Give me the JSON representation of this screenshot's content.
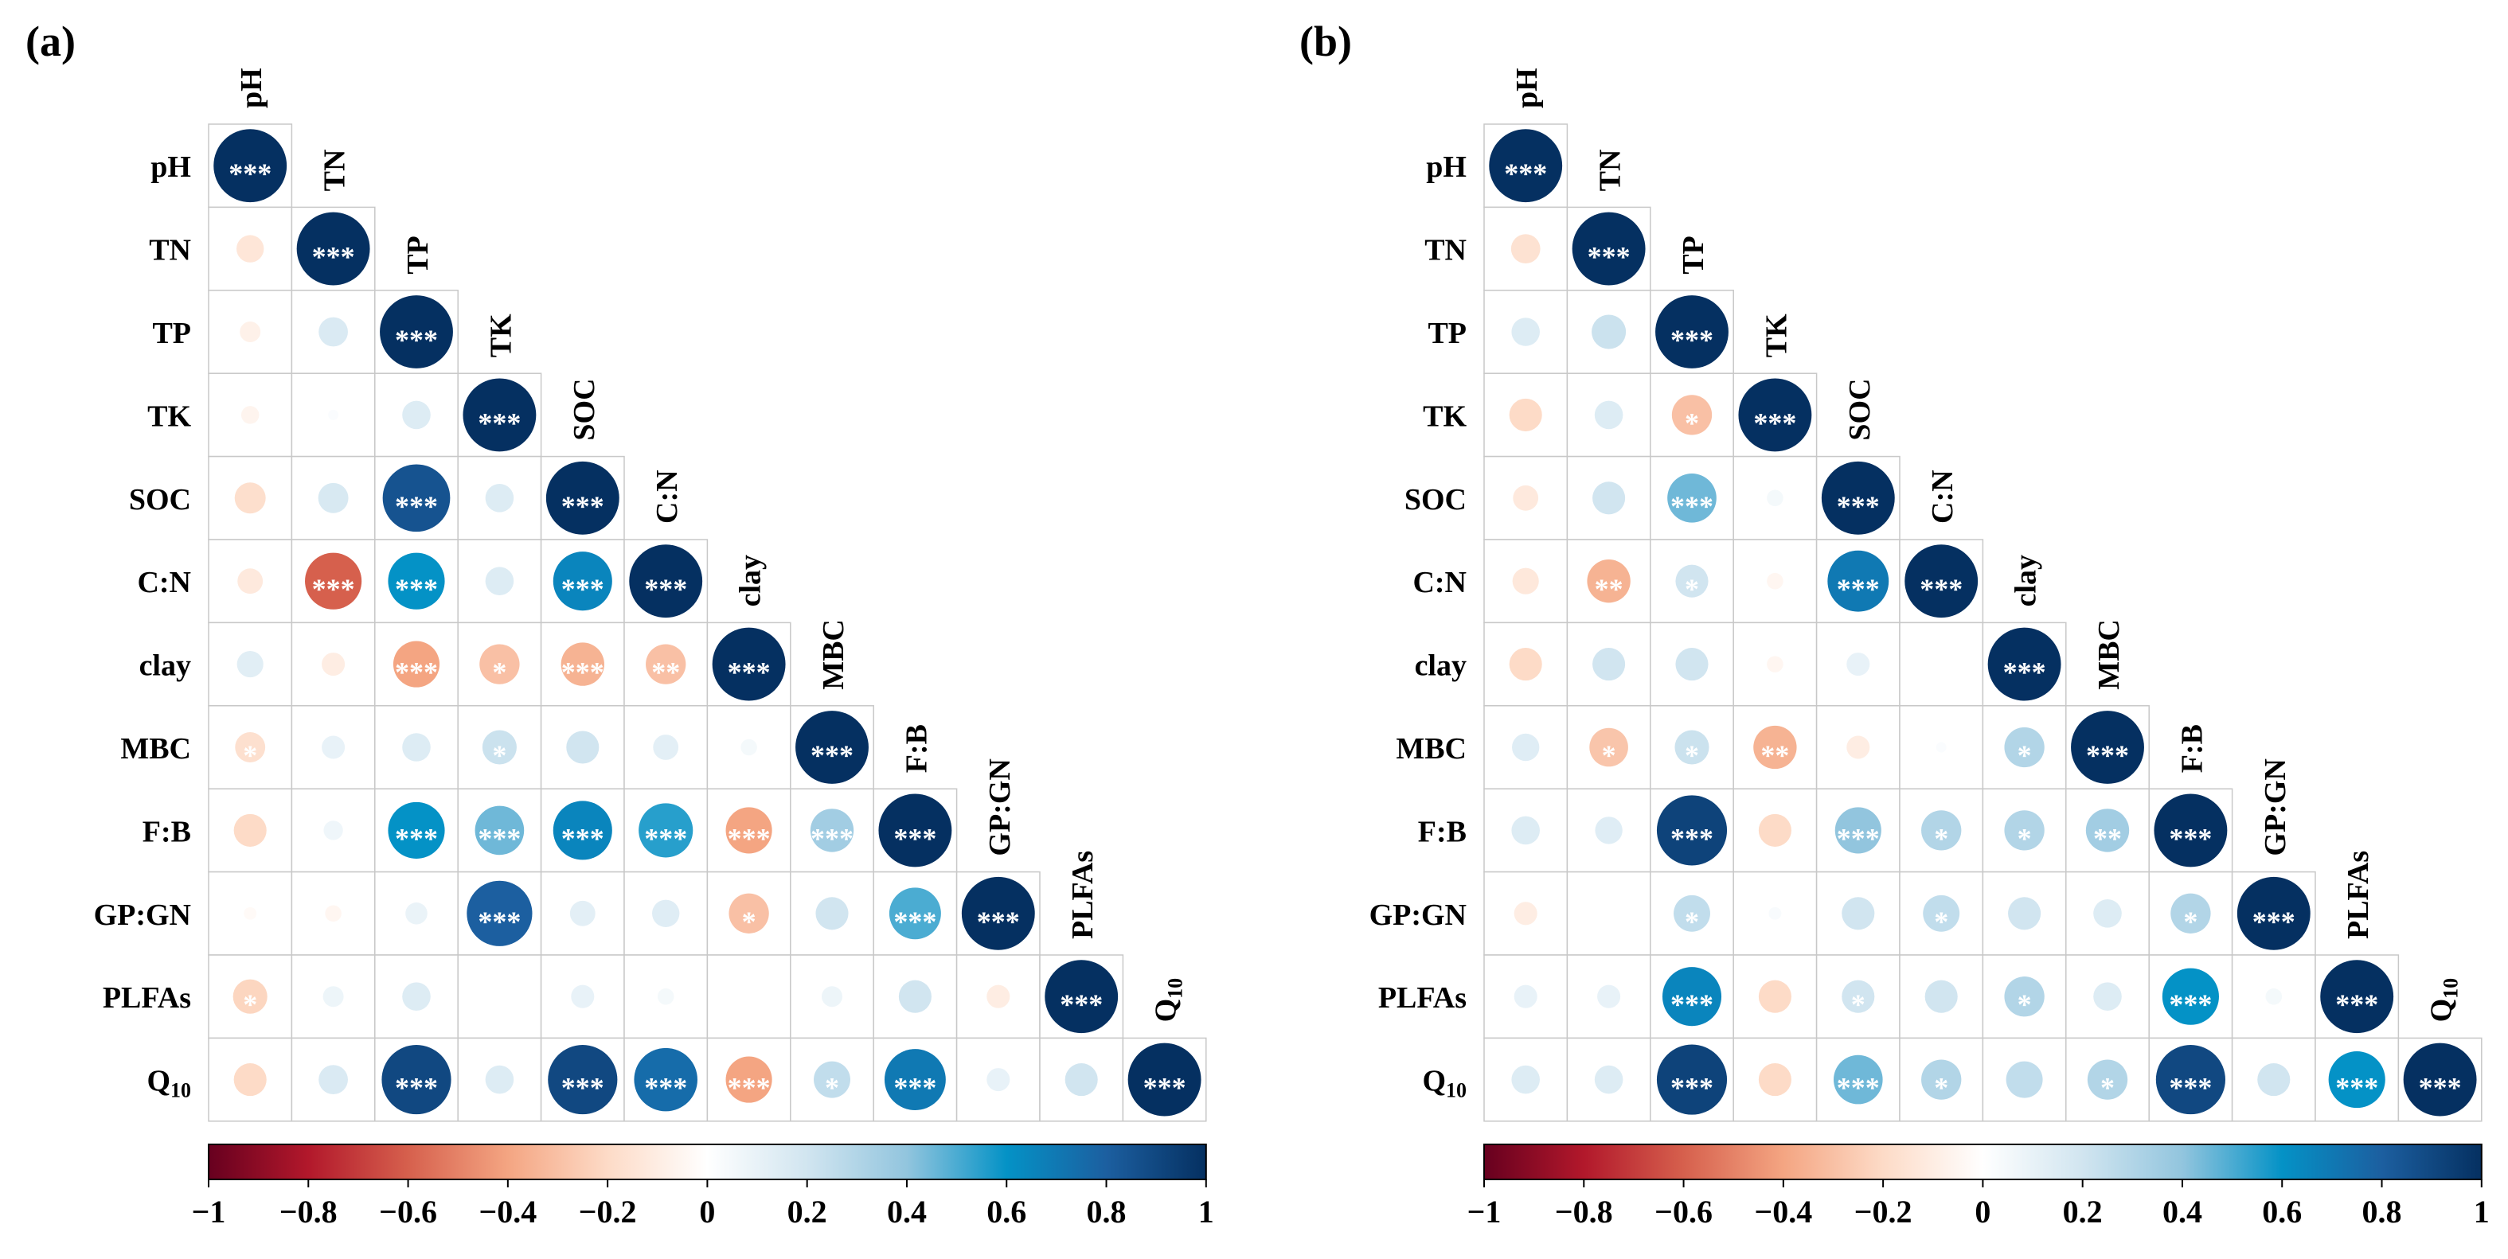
{
  "chart_data": [
    {
      "type": "correlation-matrix",
      "panel_label": "(a)",
      "variables": [
        "pH",
        "TN",
        "TP",
        "TK",
        "SOC",
        "C:N",
        "clay",
        "MBC",
        "F:B",
        "GP:GN",
        "PLFAs",
        "Q10"
      ],
      "correlations": [
        [
          1.0
        ],
        [
          -0.14,
          1.0
        ],
        [
          -0.08,
          0.16,
          1.0
        ],
        [
          -0.06,
          0.02,
          0.15,
          1.0
        ],
        [
          -0.18,
          0.17,
          0.85,
          0.15,
          1.0
        ],
        [
          -0.12,
          -0.6,
          0.6,
          0.15,
          0.65,
          1.0
        ],
        [
          0.13,
          -0.1,
          -0.4,
          -0.3,
          -0.35,
          -0.3,
          1.0
        ],
        [
          -0.17,
          0.1,
          0.15,
          0.22,
          0.2,
          0.12,
          0.05,
          1.0
        ],
        [
          -0.2,
          0.07,
          0.6,
          0.45,
          0.65,
          0.55,
          -0.4,
          0.35,
          1.0
        ],
        [
          -0.03,
          -0.05,
          0.09,
          0.8,
          0.12,
          0.14,
          -0.3,
          0.2,
          0.5,
          1.0
        ],
        [
          -0.22,
          0.08,
          0.15,
          0.0,
          0.1,
          0.05,
          0.0,
          0.08,
          0.2,
          -0.1,
          1.0
        ],
        [
          -0.2,
          0.16,
          0.9,
          0.15,
          0.9,
          0.75,
          -0.4,
          0.25,
          0.7,
          0.1,
          0.2,
          1.0
        ]
      ],
      "significance": [
        [
          "***"
        ],
        [
          "",
          "***"
        ],
        [
          "",
          "",
          "***"
        ],
        [
          "",
          "",
          "",
          "***"
        ],
        [
          "",
          "",
          "***",
          "",
          "***"
        ],
        [
          "",
          "***",
          "***",
          "",
          "***",
          "***"
        ],
        [
          "",
          "",
          "***",
          "*",
          "***",
          "**",
          "***"
        ],
        [
          "*",
          "",
          "",
          "*",
          "",
          "",
          "",
          "***"
        ],
        [
          "",
          "",
          "***",
          "***",
          "***",
          "***",
          "***",
          "***",
          "***"
        ],
        [
          "",
          "",
          "",
          "***",
          "",
          "",
          "*",
          "",
          "***",
          "***"
        ],
        [
          "*",
          "",
          "",
          "",
          "",
          "",
          "",
          "",
          "",
          "",
          "***"
        ],
        [
          "",
          "",
          "***",
          "",
          "***",
          "***",
          "***",
          "*",
          "***",
          "",
          "",
          "***"
        ]
      ],
      "colorbar": {
        "ticks": [
          "−1",
          "−0.8",
          "−0.6",
          "−0.4",
          "−0.2",
          "0",
          "0.2",
          "0.4",
          "0.6",
          "0.8",
          "1"
        ],
        "range": [
          -1,
          1
        ]
      }
    },
    {
      "type": "correlation-matrix",
      "panel_label": "(b)",
      "variables": [
        "pH",
        "TN",
        "TP",
        "TK",
        "SOC",
        "C:N",
        "clay",
        "MBC",
        "F:B",
        "GP:GN",
        "PLFAs",
        "Q10"
      ],
      "correlations": [
        [
          1.0
        ],
        [
          -0.16,
          1.0
        ],
        [
          0.15,
          0.22,
          1.0
        ],
        [
          -0.2,
          0.15,
          -0.3,
          1.0
        ],
        [
          -0.12,
          0.2,
          0.45,
          0.05,
          1.0
        ],
        [
          -0.13,
          -0.35,
          0.2,
          -0.05,
          0.7,
          1.0
        ],
        [
          -0.2,
          0.2,
          0.2,
          -0.05,
          0.1,
          0.0,
          1.0
        ],
        [
          0.14,
          -0.28,
          0.22,
          -0.35,
          -0.1,
          0.02,
          0.3,
          1.0
        ],
        [
          0.15,
          0.14,
          0.92,
          -0.2,
          0.4,
          0.3,
          0.3,
          0.35,
          1.0
        ],
        [
          -0.1,
          0.0,
          0.25,
          0.03,
          0.2,
          0.25,
          0.2,
          0.15,
          0.3,
          1.0
        ],
        [
          0.1,
          0.1,
          0.65,
          -0.2,
          0.2,
          0.2,
          0.3,
          0.15,
          0.6,
          0.05,
          1.0
        ],
        [
          0.15,
          0.15,
          0.92,
          -0.2,
          0.45,
          0.3,
          0.25,
          0.3,
          0.9,
          0.2,
          0.6,
          1.0
        ]
      ],
      "significance": [
        [
          "***"
        ],
        [
          "",
          "***"
        ],
        [
          "",
          "",
          "***"
        ],
        [
          "",
          "",
          "*",
          "***"
        ],
        [
          "",
          "",
          "***",
          "",
          "***"
        ],
        [
          "",
          "**",
          "*",
          "",
          "***",
          "***"
        ],
        [
          "",
          "",
          "",
          "",
          "",
          "",
          "***"
        ],
        [
          "",
          "*",
          "*",
          "**",
          "",
          "",
          "*",
          "***"
        ],
        [
          "",
          "",
          "***",
          "",
          "***",
          "*",
          "*",
          "**",
          "***"
        ],
        [
          "",
          "",
          "*",
          "",
          "",
          "*",
          "",
          "",
          "*",
          "***"
        ],
        [
          "",
          "",
          "***",
          "",
          "*",
          "",
          "*",
          "",
          "***",
          "",
          "***"
        ],
        [
          "",
          "",
          "***",
          "",
          "***",
          "*",
          "",
          "*",
          "***",
          "",
          "***",
          "***"
        ]
      ],
      "colorbar": {
        "ticks": [
          "−1",
          "−0.8",
          "−0.6",
          "−0.4",
          "−0.2",
          "0",
          "0.2",
          "0.4",
          "0.6",
          "0.8",
          "1"
        ],
        "range": [
          -1,
          1
        ]
      }
    }
  ]
}
